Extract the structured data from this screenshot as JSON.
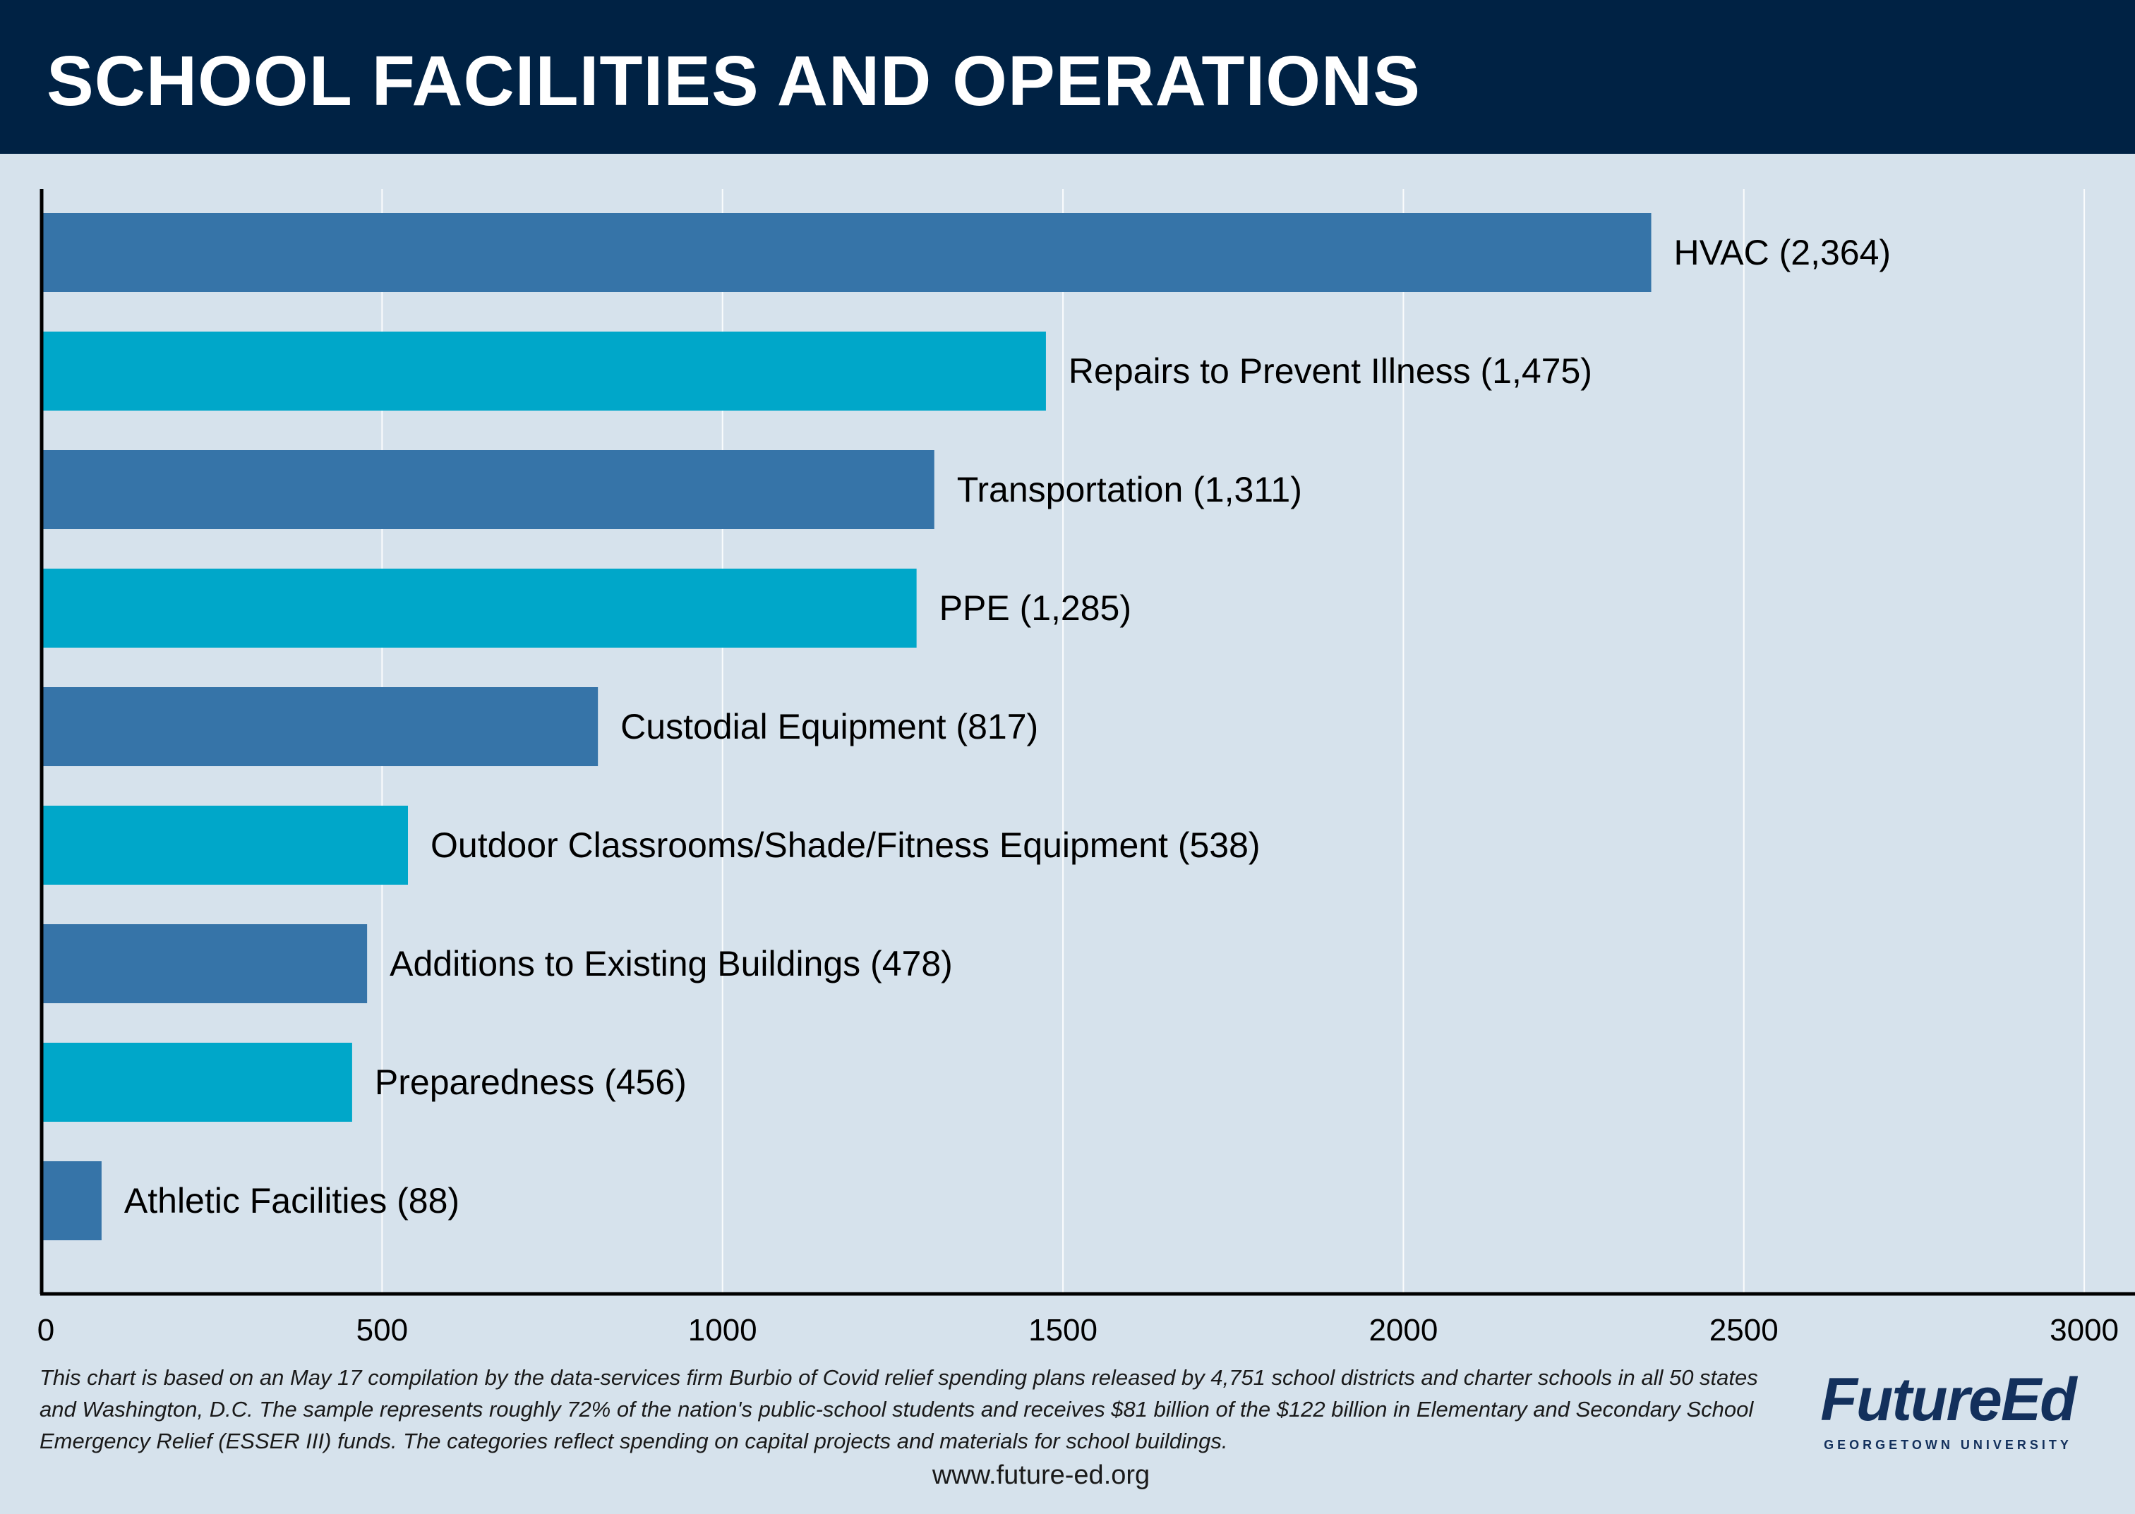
{
  "header": {
    "title": "SCHOOL FACILITIES AND OPERATIONS"
  },
  "chart_data": {
    "type": "bar",
    "orientation": "horizontal",
    "categories": [
      "HVAC (2,364)",
      "Repairs to Prevent Illness (1,475)",
      "Transportation (1,311)",
      "PPE (1,285)",
      "Custodial Equipment (817)",
      "Outdoor Classrooms/Shade/Fitness Equipment (538)",
      "Additions to Existing Buildings (478)",
      "Preparedness (456)",
      "Athletic Facilities (88)"
    ],
    "values": [
      2364,
      1475,
      1311,
      1285,
      817,
      538,
      478,
      456,
      88
    ],
    "xlim": [
      0,
      3000
    ],
    "xticks": [
      "0",
      "500",
      "1000",
      "1500",
      "2000",
      "2500",
      "3000"
    ],
    "grid": true,
    "colors": [
      "#3674a8",
      "#00a7c9"
    ]
  },
  "footnote": "This chart is based on an May 17 compilation by the data-services firm Burbio of Covid relief spending plans released by 4,751 school districts and charter schools in all 50 states and Washington, D.C. The sample represents roughly 72% of the nation's public-school students and receives $81 billion of the $122 billion in Elementary and Secondary School Emergency Relief (ESSER III) funds. The categories reflect spending on capital projects and materials for school buildings.",
  "url": "www.future-ed.org",
  "logo": {
    "name": "FutureEd",
    "subtitle": "GEORGETOWN UNIVERSITY"
  }
}
